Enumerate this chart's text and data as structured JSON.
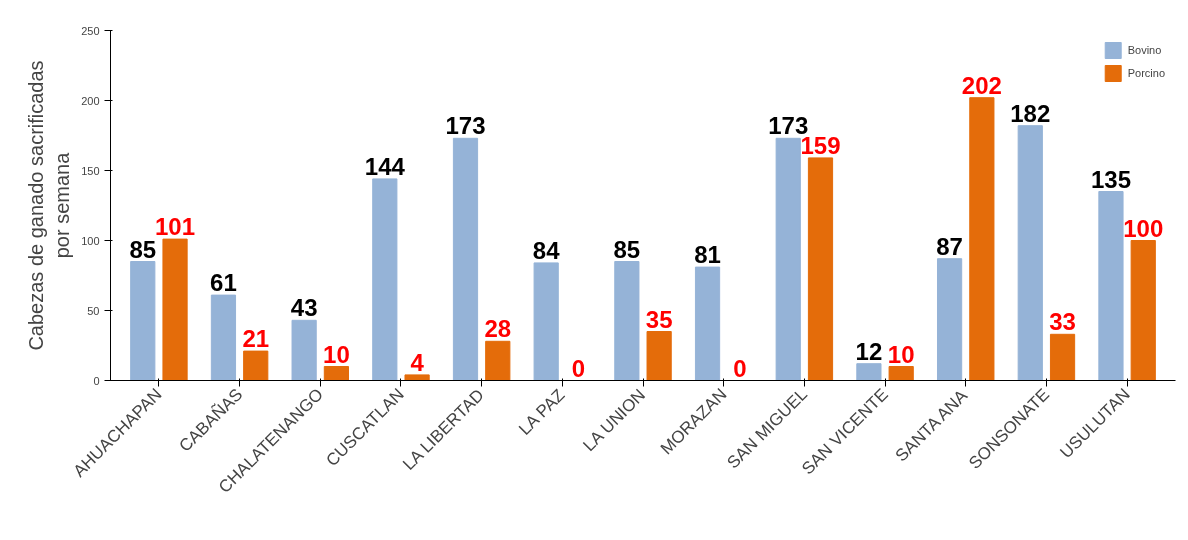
{
  "chart_data": {
    "type": "bar",
    "ylabel": "Cabezas de ganado sacrificadas\npor semana",
    "categories": [
      "AHUACHAPAN",
      "CABAÑAS",
      "CHALATENANGO",
      "CUSCATLAN",
      "LA LIBERTAD",
      "LA PAZ",
      "LA UNION",
      "MORAZAN",
      "SAN MIGUEL",
      "SAN VICENTE",
      "SANTA ANA",
      "SONSONATE",
      "USULUTAN"
    ],
    "series": [
      {
        "name": "Bovino",
        "color": "#95b3d7",
        "values": [
          85,
          61,
          43,
          144,
          173,
          84,
          85,
          81,
          173,
          12,
          87,
          182,
          135
        ]
      },
      {
        "name": "Porcino",
        "color": "#e46c0a",
        "values": [
          101,
          21,
          10,
          4,
          28,
          0,
          35,
          0,
          159,
          10,
          202,
          33,
          100
        ]
      }
    ],
    "ylim": [
      0,
      250
    ],
    "yticks": [
      0,
      50,
      100,
      150,
      200,
      250
    ],
    "grid": false,
    "legend": "top right",
    "data_labels": true
  }
}
